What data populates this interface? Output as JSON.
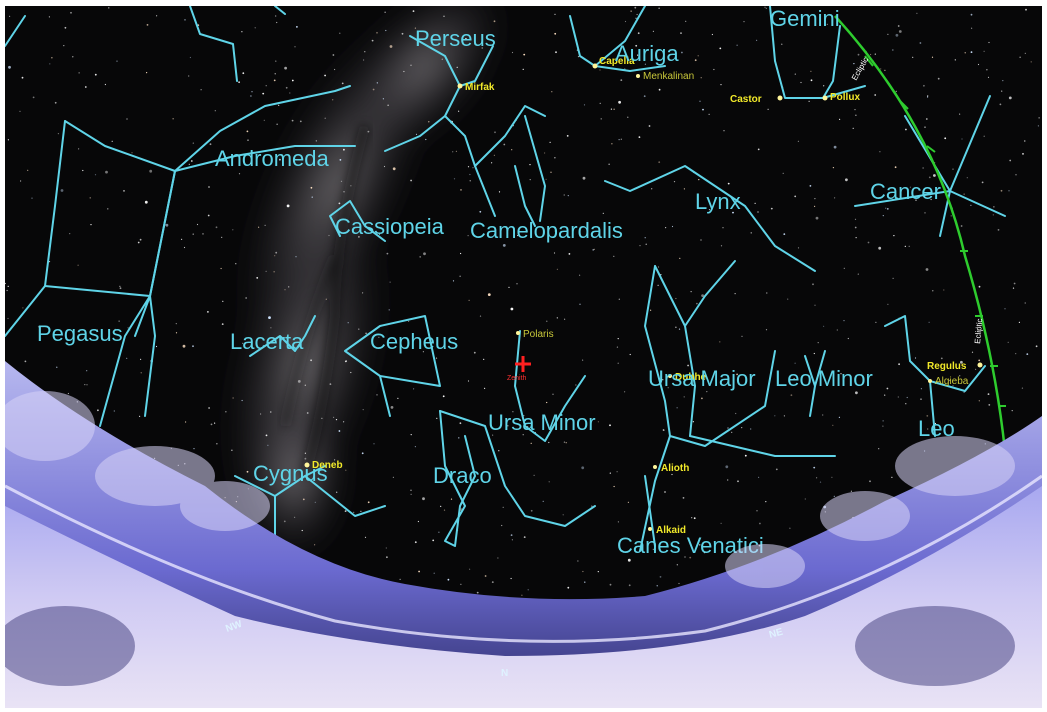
{
  "constellations": [
    "Perseus",
    "Auriga",
    "Gemini",
    "Andromeda",
    "Cancer",
    "Lynx",
    "Cassiopeia",
    "Camelopardalis",
    "Pegasus",
    "Lacerta",
    "Cepheus",
    "Ursa Minor",
    "Ursa Major",
    "Leo Minor",
    "Leo",
    "Cygnus",
    "Draco",
    "Canes Venatici"
  ],
  "stars": {
    "mirfak": "Mirfak",
    "capella": "Capella",
    "menkalinan": "Menkalinan",
    "castor": "Castor",
    "pollux": "Pollux",
    "polaris": "Polaris",
    "dubhe": "Dubhe",
    "regulus": "Regulus",
    "algieba": "Algieba",
    "deneb": "Deneb",
    "alioth": "Alioth",
    "alkaid": "Alkaid"
  },
  "markers": {
    "zenith": "Zenith",
    "ecliptic": "Ecliptic"
  },
  "horizon": {
    "nw": "NW",
    "n": "N",
    "ne": "NE"
  },
  "colors": {
    "sky": "#070708",
    "constellation_lines": "#5fd4e8",
    "star_labels": "#f2ea2a",
    "ecliptic": "#2ecc2e",
    "zenith_marker": "#ff2020",
    "horizon": "#7f7ad8"
  }
}
